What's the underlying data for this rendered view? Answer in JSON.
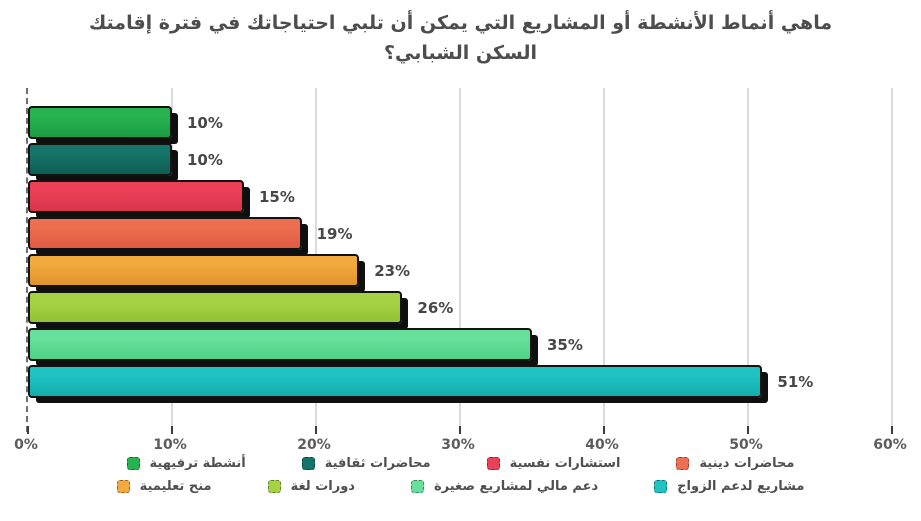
{
  "title": {
    "line1": "ماهي أنماط الأنشطة أو المشاريع التي يمكن أن تلبي احتياجاتك في فترة إقامتك",
    "line2": "السكن الشبابي؟",
    "full": "ماهي أنماط الأنشطة أو المشاريع التي يمكن أن تلبي احتياجاتك في فترة إقامتك السكن الشبابي؟"
  },
  "chart_data": {
    "type": "bar",
    "orientation": "horizontal",
    "title": "ماهي أنماط الأنشطة أو المشاريع التي يمكن أن تلبي احتياجاتك في فترة إقامتك السكن الشبابي؟",
    "categories": [
      "أنشطة ترفيهية",
      "محاضرات ثقافية",
      "استشارات نفسية",
      "محاضرات دينية",
      "منح تعليمية",
      "دورات لغة",
      "دعم مالي لمشاريع صغيرة",
      "مشاريع لدعم الزواج"
    ],
    "values": [
      10,
      10,
      15,
      19,
      23,
      26,
      35,
      51
    ],
    "value_labels": [
      "10%",
      "10%",
      "15%",
      "19%",
      "23%",
      "26%",
      "35%",
      "51%"
    ],
    "colors": [
      "#27b350",
      "#16756a",
      "#eb4056",
      "#ee6e51",
      "#f2a93e",
      "#a6d345",
      "#66e09a",
      "#20c3c1"
    ],
    "colors_dark": [
      "#1c9c44",
      "#0e5c52",
      "#d8354b",
      "#de5a41",
      "#e0942c",
      "#92c235",
      "#4fd287",
      "#12aeae"
    ],
    "xlabel": "",
    "ylabel": "",
    "xlim": [
      0,
      60
    ],
    "x_tick_labels": [
      "0%",
      "10%",
      "20%",
      "30%",
      "40%",
      "50%",
      "60%"
    ],
    "grid": "vertical gridlines every 10%",
    "legend_position": "bottom-two-rows",
    "legend_rows": [
      [
        "أنشطة ترفيهية",
        "محاضرات ثقافية",
        "استشارات نفسية",
        "محاضرات دينية"
      ],
      [
        "منح تعليمية",
        "دورات لغة",
        "دعم مالي لمشاريع صغيرة",
        "مشاريع لدعم الزواج"
      ]
    ]
  }
}
